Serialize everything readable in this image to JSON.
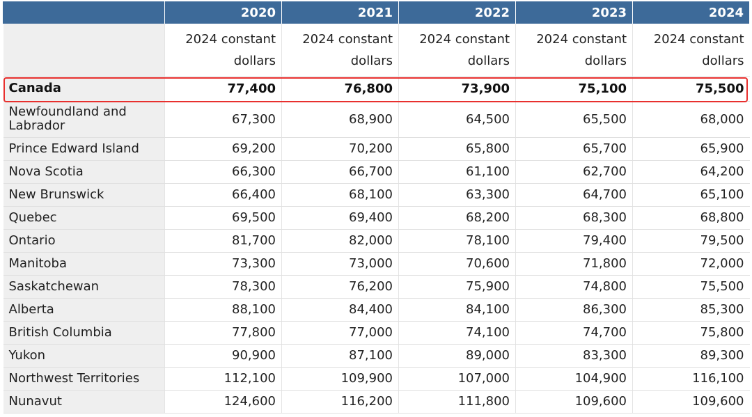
{
  "table": {
    "years": [
      "2020",
      "2021",
      "2022",
      "2023",
      "2024"
    ],
    "unit": "2024 constant dollars",
    "rows": [
      {
        "label": "Canada",
        "values": [
          "77,400",
          "76,800",
          "73,900",
          "75,100",
          "75,500"
        ]
      },
      {
        "label": "Newfoundland and Labrador",
        "values": [
          "67,300",
          "68,900",
          "64,500",
          "65,500",
          "68,000"
        ]
      },
      {
        "label": "Prince Edward Island",
        "values": [
          "69,200",
          "70,200",
          "65,800",
          "65,700",
          "65,900"
        ]
      },
      {
        "label": "Nova Scotia",
        "values": [
          "66,300",
          "66,700",
          "61,100",
          "62,700",
          "64,200"
        ]
      },
      {
        "label": "New Brunswick",
        "values": [
          "66,400",
          "68,100",
          "63,300",
          "64,700",
          "65,100"
        ]
      },
      {
        "label": "Quebec",
        "values": [
          "69,500",
          "69,400",
          "68,200",
          "68,300",
          "68,800"
        ]
      },
      {
        "label": "Ontario",
        "values": [
          "81,700",
          "82,000",
          "78,100",
          "79,400",
          "79,500"
        ]
      },
      {
        "label": "Manitoba",
        "values": [
          "73,300",
          "73,000",
          "70,600",
          "71,800",
          "72,000"
        ]
      },
      {
        "label": "Saskatchewan",
        "values": [
          "78,300",
          "76,200",
          "75,900",
          "74,800",
          "75,500"
        ]
      },
      {
        "label": "Alberta",
        "values": [
          "88,100",
          "84,400",
          "84,100",
          "86,300",
          "85,300"
        ]
      },
      {
        "label": "British Columbia",
        "values": [
          "77,800",
          "77,000",
          "74,100",
          "74,700",
          "75,800"
        ]
      },
      {
        "label": "Yukon",
        "values": [
          "90,900",
          "87,100",
          "89,000",
          "83,300",
          "89,300"
        ]
      },
      {
        "label": "Northwest Territories",
        "values": [
          "112,100",
          "109,900",
          "107,000",
          "104,900",
          "116,100"
        ]
      },
      {
        "label": "Nunavut",
        "values": [
          "124,600",
          "116,200",
          "111,800",
          "109,600",
          "109,600"
        ]
      }
    ]
  },
  "colors": {
    "header_background": "#3d6a99",
    "label_column_background": "#efefef",
    "highlight_border": "#e8302e"
  }
}
